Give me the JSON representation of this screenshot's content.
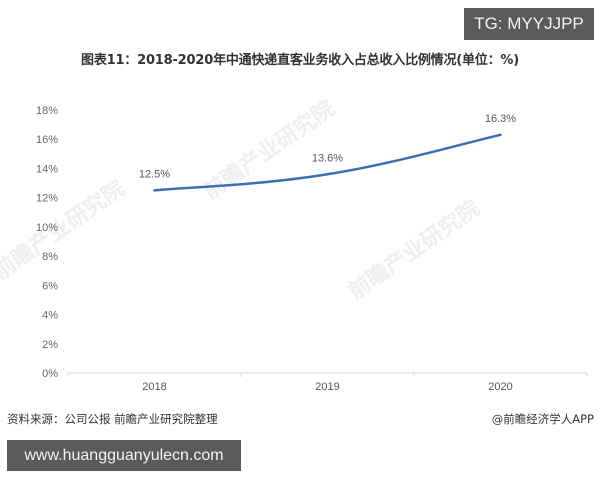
{
  "badges": {
    "top_right": "TG: MYYJJPP",
    "bottom_left": "www.huangguanyulecn.com"
  },
  "title": "图表11：2018-2020年中通快递直客业务收入占总收入比例情况(单位：%)",
  "footer": {
    "source": "资料来源：公司公报 前瞻产业研究院整理",
    "credit": "@前瞻经济学人APP"
  },
  "watermark": "前瞻产业研究院",
  "colors": {
    "line": "#3a6fb5",
    "axis": "#d9d9d9",
    "badge_bg": "#5a5a5a"
  },
  "chart_data": {
    "type": "line",
    "title": "图表11：2018-2020年中通快递直客业务收入占总收入比例情况(单位：%)",
    "xlabel": "",
    "ylabel": "",
    "categories": [
      "2018",
      "2019",
      "2020"
    ],
    "series": [
      {
        "name": "直客业务收入占总收入比例",
        "values": [
          12.5,
          13.6,
          16.3
        ]
      }
    ],
    "data_labels": [
      "12.5%",
      "13.6%",
      "16.3%"
    ],
    "yticks": [
      "0%",
      "2%",
      "4%",
      "6%",
      "8%",
      "10%",
      "12%",
      "14%",
      "16%",
      "18%"
    ],
    "ylim": [
      0,
      18
    ],
    "grid": false,
    "legend": "none",
    "smooth": true
  }
}
